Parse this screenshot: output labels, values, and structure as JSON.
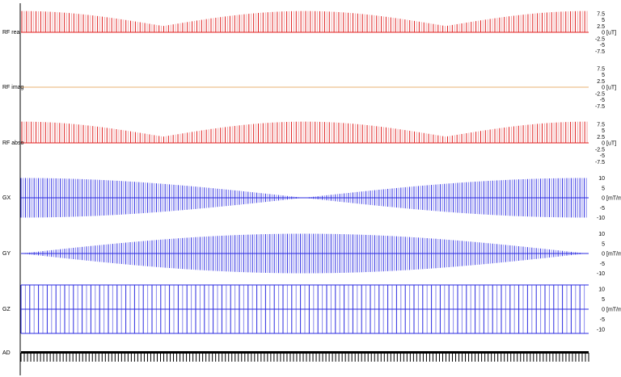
{
  "colors": {
    "rf": "#e02020",
    "rf_light": "#f2a8a8",
    "grad": "#2a2ae0",
    "grad_light": "#8a8aee",
    "rf_imag_line": "#e8b070",
    "adc": "#000000",
    "axis": "#000000"
  },
  "chart_data": [
    {
      "type": "line",
      "ylabel": "RF real",
      "unit": "[uT]",
      "yticks": [
        "7.5",
        "5",
        "2.5",
        "0",
        "-2.5",
        "-5",
        "-7.5"
      ],
      "ylim": [
        -7.5,
        9
      ],
      "series": [
        {
          "pulse_count": 240,
          "min_amplitude": 2.5,
          "max_amplitude": 8.5,
          "modulation": "abs-cos"
        }
      ]
    },
    {
      "type": "line",
      "ylabel": "RF imag",
      "unit": "[uT]",
      "yticks": [
        "7.5",
        "5",
        "2.5",
        "0",
        "-2.5",
        "-5",
        "-7.5"
      ],
      "ylim": [
        -7.5,
        9
      ],
      "series": [
        {
          "pulse_count": 0,
          "min_amplitude": 0,
          "max_amplitude": 0
        }
      ]
    },
    {
      "type": "line",
      "ylabel": "RF abso",
      "unit": "[uT]",
      "yticks": [
        "7.5",
        "5",
        "2.5",
        "0",
        "-2.5",
        "-5",
        "-7.5"
      ],
      "ylim": [
        -7.5,
        9
      ],
      "series": [
        {
          "pulse_count": 240,
          "min_amplitude": 2.5,
          "max_amplitude": 8.5,
          "modulation": "abs-cos"
        }
      ]
    },
    {
      "type": "line",
      "ylabel": "GX",
      "unit": "[mT/m]",
      "yticks": [
        "10",
        "5",
        "0",
        "-5",
        "-10"
      ],
      "ylim": [
        -10,
        10
      ],
      "series": [
        {
          "line_count": 260,
          "envelope": "cosine",
          "start_amplitude": 10,
          "end_amplitude": 10,
          "zero_at": 0.5
        }
      ]
    },
    {
      "type": "line",
      "ylabel": "GY",
      "unit": "[mT/m]",
      "yticks": [
        "10",
        "5",
        "0",
        "-5",
        "-10"
      ],
      "ylim": [
        -10,
        10
      ],
      "series": [
        {
          "line_count": 260,
          "envelope": "sine",
          "start_amplitude": 0,
          "peak_amplitude": 10,
          "end_amplitude": 0
        }
      ]
    },
    {
      "type": "line",
      "ylabel": "GZ",
      "unit": "[mT/m]",
      "yticks": [
        "10",
        "5",
        "0",
        "-5",
        "-10"
      ],
      "ylim": [
        -10,
        10
      ],
      "series": [
        {
          "line_count": 130,
          "envelope": "constant",
          "amplitude": 12
        }
      ]
    },
    {
      "type": "line",
      "ylabel": "AD",
      "unit": "",
      "yticks": [],
      "series": [
        {
          "line_count": 175,
          "envelope": "constant"
        }
      ]
    }
  ]
}
